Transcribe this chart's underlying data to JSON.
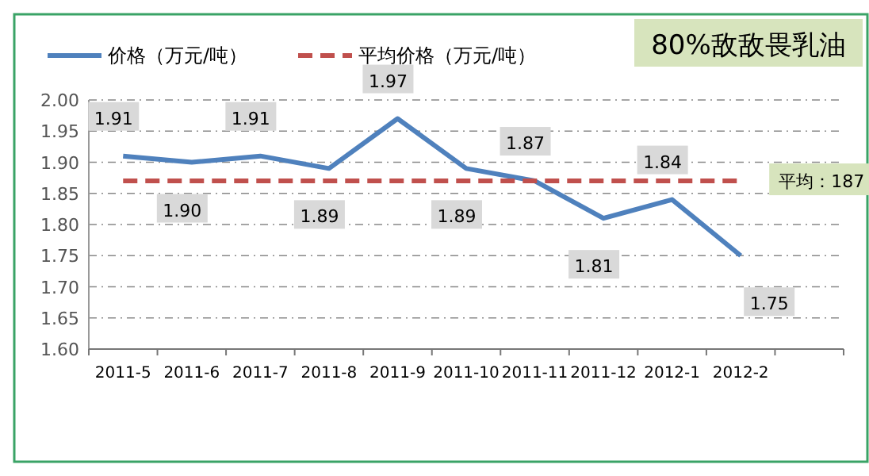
{
  "chart_data": {
    "type": "line",
    "title": "80%敌敌畏乳油",
    "categories": [
      "2011-5",
      "2011-6",
      "2011-7",
      "2011-8",
      "2011-9",
      "2011-10",
      "2011-11",
      "2011-12",
      "2012-1",
      "2012-2",
      null
    ],
    "series": [
      {
        "name": "价格（万元/吨）",
        "color": "#4f81bd",
        "values": [
          1.91,
          1.9,
          1.91,
          1.89,
          1.97,
          1.89,
          1.87,
          1.81,
          1.84,
          1.75,
          null
        ],
        "value_labels": [
          "1.91",
          "1.90",
          "1.91",
          "1.89",
          "1.97",
          "1.89",
          "1.87",
          "1.81",
          "1.84",
          "1.75",
          null
        ]
      },
      {
        "name": "平均价格（万元/吨）",
        "color": "#c0504d",
        "line_style": "dashed",
        "values": [
          1.87,
          1.87,
          1.87,
          1.87,
          1.87,
          1.87,
          1.87,
          1.87,
          1.87,
          1.87,
          null
        ]
      }
    ],
    "annotations": [
      {
        "text": "平均：187",
        "x": "2012-2",
        "y": 1.87
      }
    ],
    "ylim": [
      1.6,
      2.0
    ],
    "yticks": [
      {
        "value": 1.6,
        "label": "1.60"
      },
      {
        "value": 1.65,
        "label": "1.65"
      },
      {
        "value": 1.7,
        "label": "1.70"
      },
      {
        "value": 1.75,
        "label": "1.75"
      },
      {
        "value": 1.8,
        "label": "1.80"
      },
      {
        "value": 1.85,
        "label": "1.85"
      },
      {
        "value": 1.9,
        "label": "1.90"
      },
      {
        "value": 1.95,
        "label": "1.95"
      },
      {
        "value": 2.0,
        "label": "2.00"
      }
    ],
    "grid": "y",
    "legend": "top left",
    "marker": "none"
  }
}
